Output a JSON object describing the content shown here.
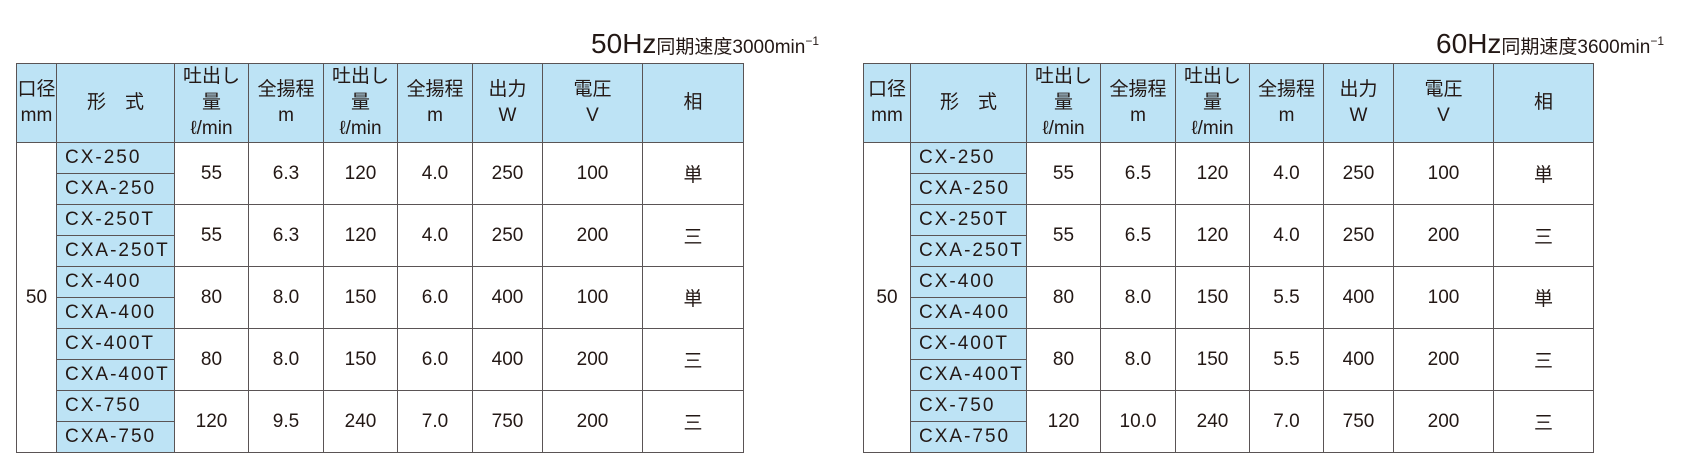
{
  "headers": {
    "bore": "口径",
    "bore_unit": "mm",
    "model": "形　式",
    "flow": "吐出し量",
    "flow_unit": "ℓ/min",
    "head": "全揚程",
    "head_unit": "m",
    "output": "出力",
    "output_unit": "W",
    "voltage": "電圧",
    "voltage_unit": "V",
    "phase": "相"
  },
  "tables": [
    {
      "title_hz": "50Hz",
      "title_rest": "同期速度3000min",
      "title_sup": "−1",
      "bore": "50",
      "groups": [
        {
          "models": [
            "CX-250",
            "CXA-250"
          ],
          "flow1": "55",
          "head1": "6.3",
          "flow2": "120",
          "head2": "4.0",
          "output": "250",
          "voltage": "100",
          "phase": "単"
        },
        {
          "models": [
            "CX-250T",
            "CXA-250T"
          ],
          "flow1": "55",
          "head1": "6.3",
          "flow2": "120",
          "head2": "4.0",
          "output": "250",
          "voltage": "200",
          "phase": "三"
        },
        {
          "models": [
            "CX-400",
            "CXA-400"
          ],
          "flow1": "80",
          "head1": "8.0",
          "flow2": "150",
          "head2": "6.0",
          "output": "400",
          "voltage": "100",
          "phase": "単"
        },
        {
          "models": [
            "CX-400T",
            "CXA-400T"
          ],
          "flow1": "80",
          "head1": "8.0",
          "flow2": "150",
          "head2": "6.0",
          "output": "400",
          "voltage": "200",
          "phase": "三"
        },
        {
          "models": [
            "CX-750",
            "CXA-750"
          ],
          "flow1": "120",
          "head1": "9.5",
          "flow2": "240",
          "head2": "7.0",
          "output": "750",
          "voltage": "200",
          "phase": "三"
        }
      ]
    },
    {
      "title_hz": "60Hz",
      "title_rest": "同期速度3600min",
      "title_sup": "−1",
      "bore": "50",
      "groups": [
        {
          "models": [
            "CX-250",
            "CXA-250"
          ],
          "flow1": "55",
          "head1": "6.5",
          "flow2": "120",
          "head2": "4.0",
          "output": "250",
          "voltage": "100",
          "phase": "単"
        },
        {
          "models": [
            "CX-250T",
            "CXA-250T"
          ],
          "flow1": "55",
          "head1": "6.5",
          "flow2": "120",
          "head2": "4.0",
          "output": "250",
          "voltage": "200",
          "phase": "三"
        },
        {
          "models": [
            "CX-400",
            "CXA-400"
          ],
          "flow1": "80",
          "head1": "8.0",
          "flow2": "150",
          "head2": "5.5",
          "output": "400",
          "voltage": "100",
          "phase": "単"
        },
        {
          "models": [
            "CX-400T",
            "CXA-400T"
          ],
          "flow1": "80",
          "head1": "8.0",
          "flow2": "150",
          "head2": "5.5",
          "output": "400",
          "voltage": "200",
          "phase": "三"
        },
        {
          "models": [
            "CX-750",
            "CXA-750"
          ],
          "flow1": "120",
          "head1": "10.0",
          "flow2": "240",
          "head2": "7.0",
          "output": "750",
          "voltage": "200",
          "phase": "三"
        }
      ]
    }
  ]
}
